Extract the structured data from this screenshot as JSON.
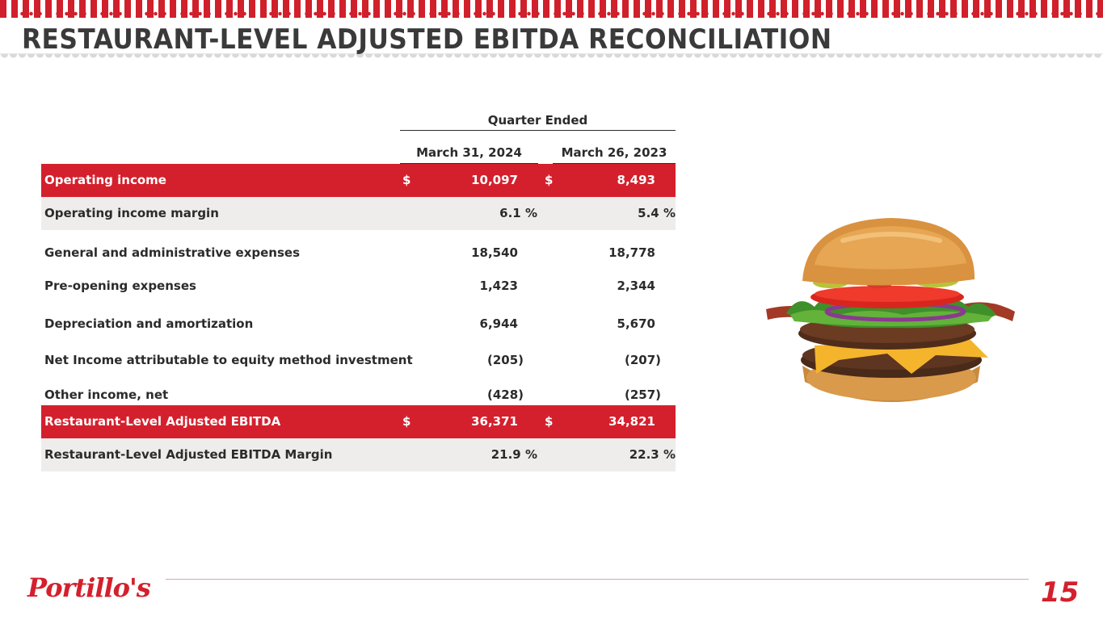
{
  "header": {
    "title": "RESTAURANT-LEVEL ADJUSTED EBITDA RECONCILIATION"
  },
  "table": {
    "period_header": "Quarter Ended",
    "columns": [
      "March 31, 2024",
      "March 26, 2023"
    ],
    "rows": [
      {
        "label": "Operating income",
        "c1": "10,097",
        "c2": "8,493",
        "dollar": "$",
        "style": "red"
      },
      {
        "label": "Operating income margin",
        "c1": "6.1 %",
        "c2": "5.4 %",
        "style": "gray"
      },
      {
        "label": "General and administrative expenses",
        "c1": "18,540",
        "c2": "18,778",
        "style": "plain"
      },
      {
        "label": "Pre-opening expenses",
        "c1": "1,423",
        "c2": "2,344",
        "style": "plain"
      },
      {
        "label": "Depreciation and amortization",
        "c1": "6,944",
        "c2": "5,670",
        "style": "plain"
      },
      {
        "label": "Net Income attributable to equity method investment",
        "c1": "(205)",
        "c2": "(207)",
        "style": "plain"
      },
      {
        "label": "Other income, net",
        "c1": "(428)",
        "c2": "(257)",
        "style": "plain"
      },
      {
        "label": "Restaurant-Level Adjusted EBITDA",
        "c1": "36,371",
        "c2": "34,821",
        "dollar": "$",
        "style": "red"
      },
      {
        "label": "Restaurant-Level Adjusted EBITDA Margin",
        "c1": "21.9 %",
        "c2": "22.3 %",
        "style": "gray"
      }
    ]
  },
  "footer": {
    "logo_text": "Portillo's",
    "page_number": "15"
  },
  "colors": {
    "brand_red": "#d4202d",
    "row_gray": "#efedec",
    "text_dark": "#2b2b2b"
  },
  "image": {
    "icon": "burger-image"
  }
}
